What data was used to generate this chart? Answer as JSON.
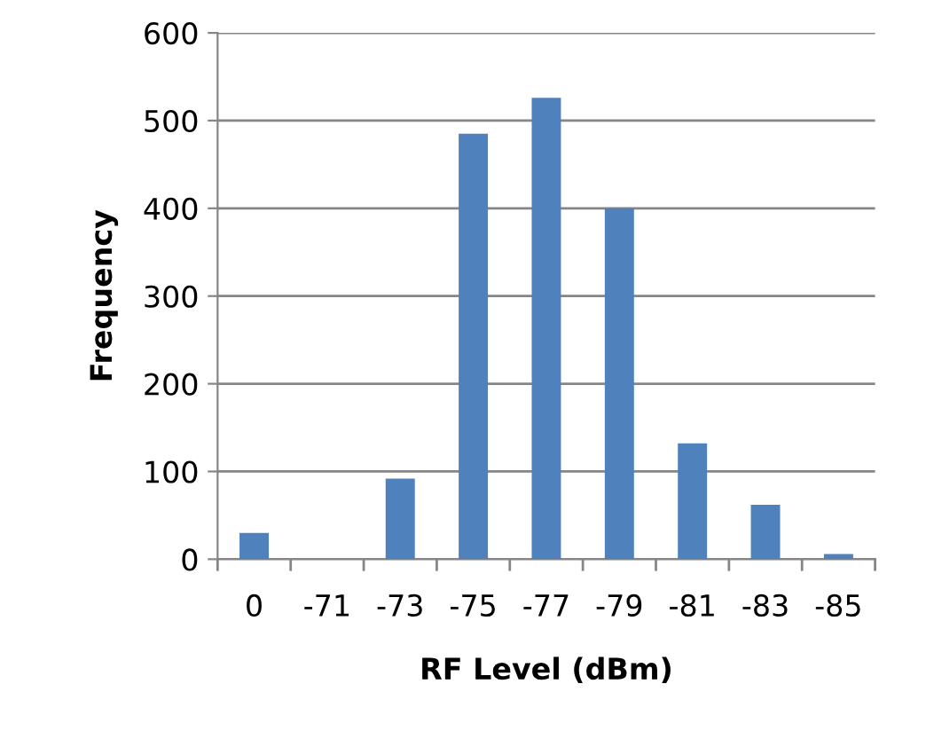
{
  "chart_data": {
    "type": "bar",
    "xlabel": "RF Level (dBm)",
    "ylabel": "Frequency",
    "categories": [
      "0",
      "-71",
      "-73",
      "-75",
      "-77",
      "-79",
      "-81",
      "-83",
      "-85"
    ],
    "values": [
      30,
      0,
      92,
      485,
      526,
      400,
      132,
      62,
      6
    ],
    "color": "#4f81bd",
    "ylim": [
      0,
      600
    ],
    "yticks": [
      0,
      100,
      200,
      300,
      400,
      500,
      600
    ],
    "grid": "y",
    "legend": false
  }
}
